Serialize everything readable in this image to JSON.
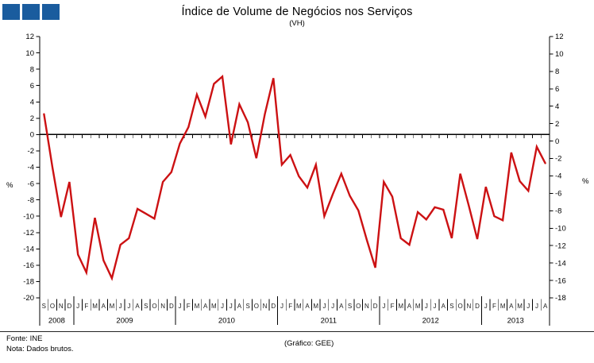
{
  "logo": {
    "color": "#1a5c9e",
    "square_count": 3
  },
  "header": {
    "title": "Índice de Volume de Negócios nos Serviços",
    "subtitle": "(VH)"
  },
  "footer": {
    "fonte": "Fonte: INE",
    "nota": "Nota: Dados  brutos.",
    "grafico": "(Gráfico:  GEE)"
  },
  "chart_data": {
    "type": "line",
    "title": "Índice de Volume de Negócios nos Serviços",
    "subtitle": "(VH)",
    "unit_label": "%",
    "series_color": "#cc1113",
    "axis_color": "#000000",
    "grid": false,
    "legend": "none",
    "axis_left": {
      "max": 12,
      "min": -20,
      "step": 2,
      "tick_labels": [
        12,
        10,
        8,
        6,
        4,
        2,
        0,
        -2,
        -4,
        -6,
        -8,
        -10,
        -12,
        -14,
        -16,
        -18,
        -20
      ]
    },
    "axis_right": {
      "max": 12,
      "min": -18,
      "step": 2,
      "tick_labels": [
        12,
        10,
        8,
        6,
        4,
        2,
        0,
        -2,
        -4,
        -6,
        -8,
        -10,
        -12,
        -14,
        -16,
        -18
      ]
    },
    "x_labels": [
      "S",
      "O",
      "N",
      "D",
      "J",
      "F",
      "M",
      "A",
      "M",
      "J",
      "J",
      "A",
      "S",
      "O",
      "N",
      "D",
      "J",
      "F",
      "M",
      "A",
      "M",
      "J",
      "J",
      "A",
      "S",
      "O",
      "N",
      "D",
      "J",
      "F",
      "M",
      "A",
      "M",
      "J",
      "J",
      "A",
      "S",
      "O",
      "N",
      "D",
      "J",
      "F",
      "M",
      "A",
      "M",
      "J",
      "J",
      "A",
      "S",
      "O",
      "N",
      "D",
      "J",
      "F",
      "M",
      "A",
      "M",
      "J",
      "J",
      "A"
    ],
    "year_groups": [
      {
        "year": "2008",
        "months": 4
      },
      {
        "year": "2009",
        "months": 12
      },
      {
        "year": "2010",
        "months": 12
      },
      {
        "year": "2011",
        "months": 12
      },
      {
        "year": "2012",
        "months": 12
      },
      {
        "year": "2013",
        "months": 8
      }
    ],
    "values": [
      2.5,
      -4.0,
      -10.1,
      -5.8,
      -14.7,
      -16.9,
      -10.2,
      -15.4,
      -17.6,
      -13.5,
      -12.7,
      -9.1,
      -9.7,
      -10.3,
      -5.8,
      -4.6,
      -1.1,
      0.9,
      4.9,
      2.2,
      6.2,
      7.1,
      -1.2,
      3.7,
      1.5,
      -2.9,
      2.5,
      6.9,
      -3.7,
      -2.5,
      -5.1,
      -6.5,
      -3.7,
      -10.0,
      -7.3,
      -4.8,
      -7.5,
      -9.3,
      -12.9,
      -16.3,
      -5.8,
      -7.6,
      -12.7,
      -13.5,
      -9.5,
      -10.4,
      -8.9,
      -9.2,
      -12.7,
      -4.8,
      -8.7,
      -12.8,
      -6.4,
      -10.0,
      -10.5,
      -2.2,
      -5.7,
      -6.9,
      -1.5,
      -3.5
    ]
  }
}
